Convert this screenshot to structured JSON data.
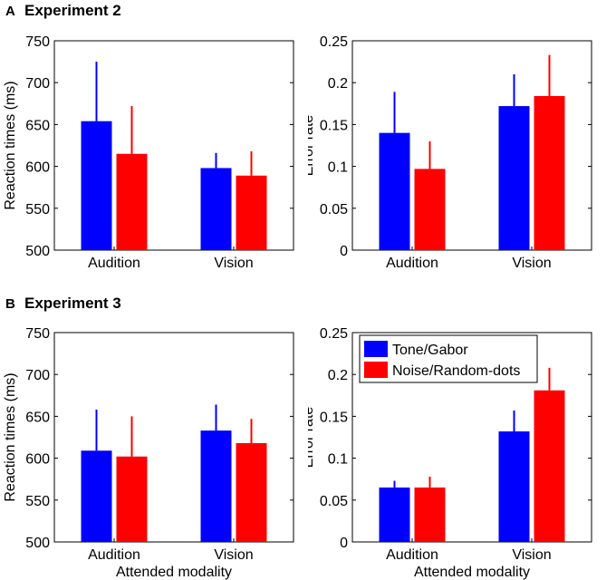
{
  "figure": {
    "sections": [
      {
        "letter": "A",
        "title": "Experiment 2"
      },
      {
        "letter": "B",
        "title": "Experiment 3"
      }
    ],
    "legend": [
      {
        "label": "Tone/Gabor",
        "color": "#0000ff"
      },
      {
        "label": "Noise/Random-dots",
        "color": "#ff0000"
      }
    ]
  },
  "chart_data": [
    {
      "id": "exp2-rt",
      "type": "bar",
      "section": "Experiment 2",
      "categories": [
        "Audition",
        "Vision"
      ],
      "ylabel": "Reaction times (ms)",
      "xlabel": "",
      "ylim": [
        500,
        750
      ],
      "yticks": [
        "500",
        "550",
        "600",
        "650",
        "700",
        "750"
      ],
      "series": [
        {
          "name": "Tone/Gabor",
          "color": "#0000ff",
          "values": [
            654,
            598
          ],
          "error": [
            71,
            18
          ]
        },
        {
          "name": "Noise/Random-dots",
          "color": "#ff0000",
          "values": [
            615,
            589
          ],
          "error": [
            57,
            29
          ]
        }
      ]
    },
    {
      "id": "exp2-err",
      "type": "bar",
      "section": "Experiment 2",
      "categories": [
        "Audition",
        "Vision"
      ],
      "ylabel": "Error rate",
      "xlabel": "",
      "ylim": [
        0,
        0.25
      ],
      "yticks": [
        "0",
        "0.05",
        "0.1",
        "0.15",
        "0.2",
        "0.25"
      ],
      "series": [
        {
          "name": "Tone/Gabor",
          "color": "#0000ff",
          "values": [
            0.14,
            0.172
          ],
          "error": [
            0.049,
            0.038
          ]
        },
        {
          "name": "Noise/Random-dots",
          "color": "#ff0000",
          "values": [
            0.097,
            0.184
          ],
          "error": [
            0.033,
            0.049
          ]
        }
      ]
    },
    {
      "id": "exp3-rt",
      "type": "bar",
      "section": "Experiment 3",
      "categories": [
        "Audition",
        "Vision"
      ],
      "ylabel": "Reaction times (ms)",
      "xlabel": "Attended modality",
      "ylim": [
        500,
        750
      ],
      "yticks": [
        "500",
        "550",
        "600",
        "650",
        "700",
        "750"
      ],
      "series": [
        {
          "name": "Tone/Gabor",
          "color": "#0000ff",
          "values": [
            609,
            633
          ],
          "error": [
            49,
            31
          ]
        },
        {
          "name": "Noise/Random-dots",
          "color": "#ff0000",
          "values": [
            602,
            618
          ],
          "error": [
            48,
            29
          ]
        }
      ]
    },
    {
      "id": "exp3-err",
      "type": "bar",
      "section": "Experiment 3",
      "categories": [
        "Audition",
        "Vision"
      ],
      "ylabel": "Error rate",
      "xlabel": "Attended modality",
      "ylim": [
        0,
        0.25
      ],
      "yticks": [
        "0",
        "0.05",
        "0.1",
        "0.15",
        "0.2",
        "0.25"
      ],
      "legend": "top-left",
      "series": [
        {
          "name": "Tone/Gabor",
          "color": "#0000ff",
          "values": [
            0.065,
            0.132
          ],
          "error": [
            0.008,
            0.025
          ]
        },
        {
          "name": "Noise/Random-dots",
          "color": "#ff0000",
          "values": [
            0.065,
            0.181
          ],
          "error": [
            0.013,
            0.027
          ]
        }
      ]
    }
  ]
}
